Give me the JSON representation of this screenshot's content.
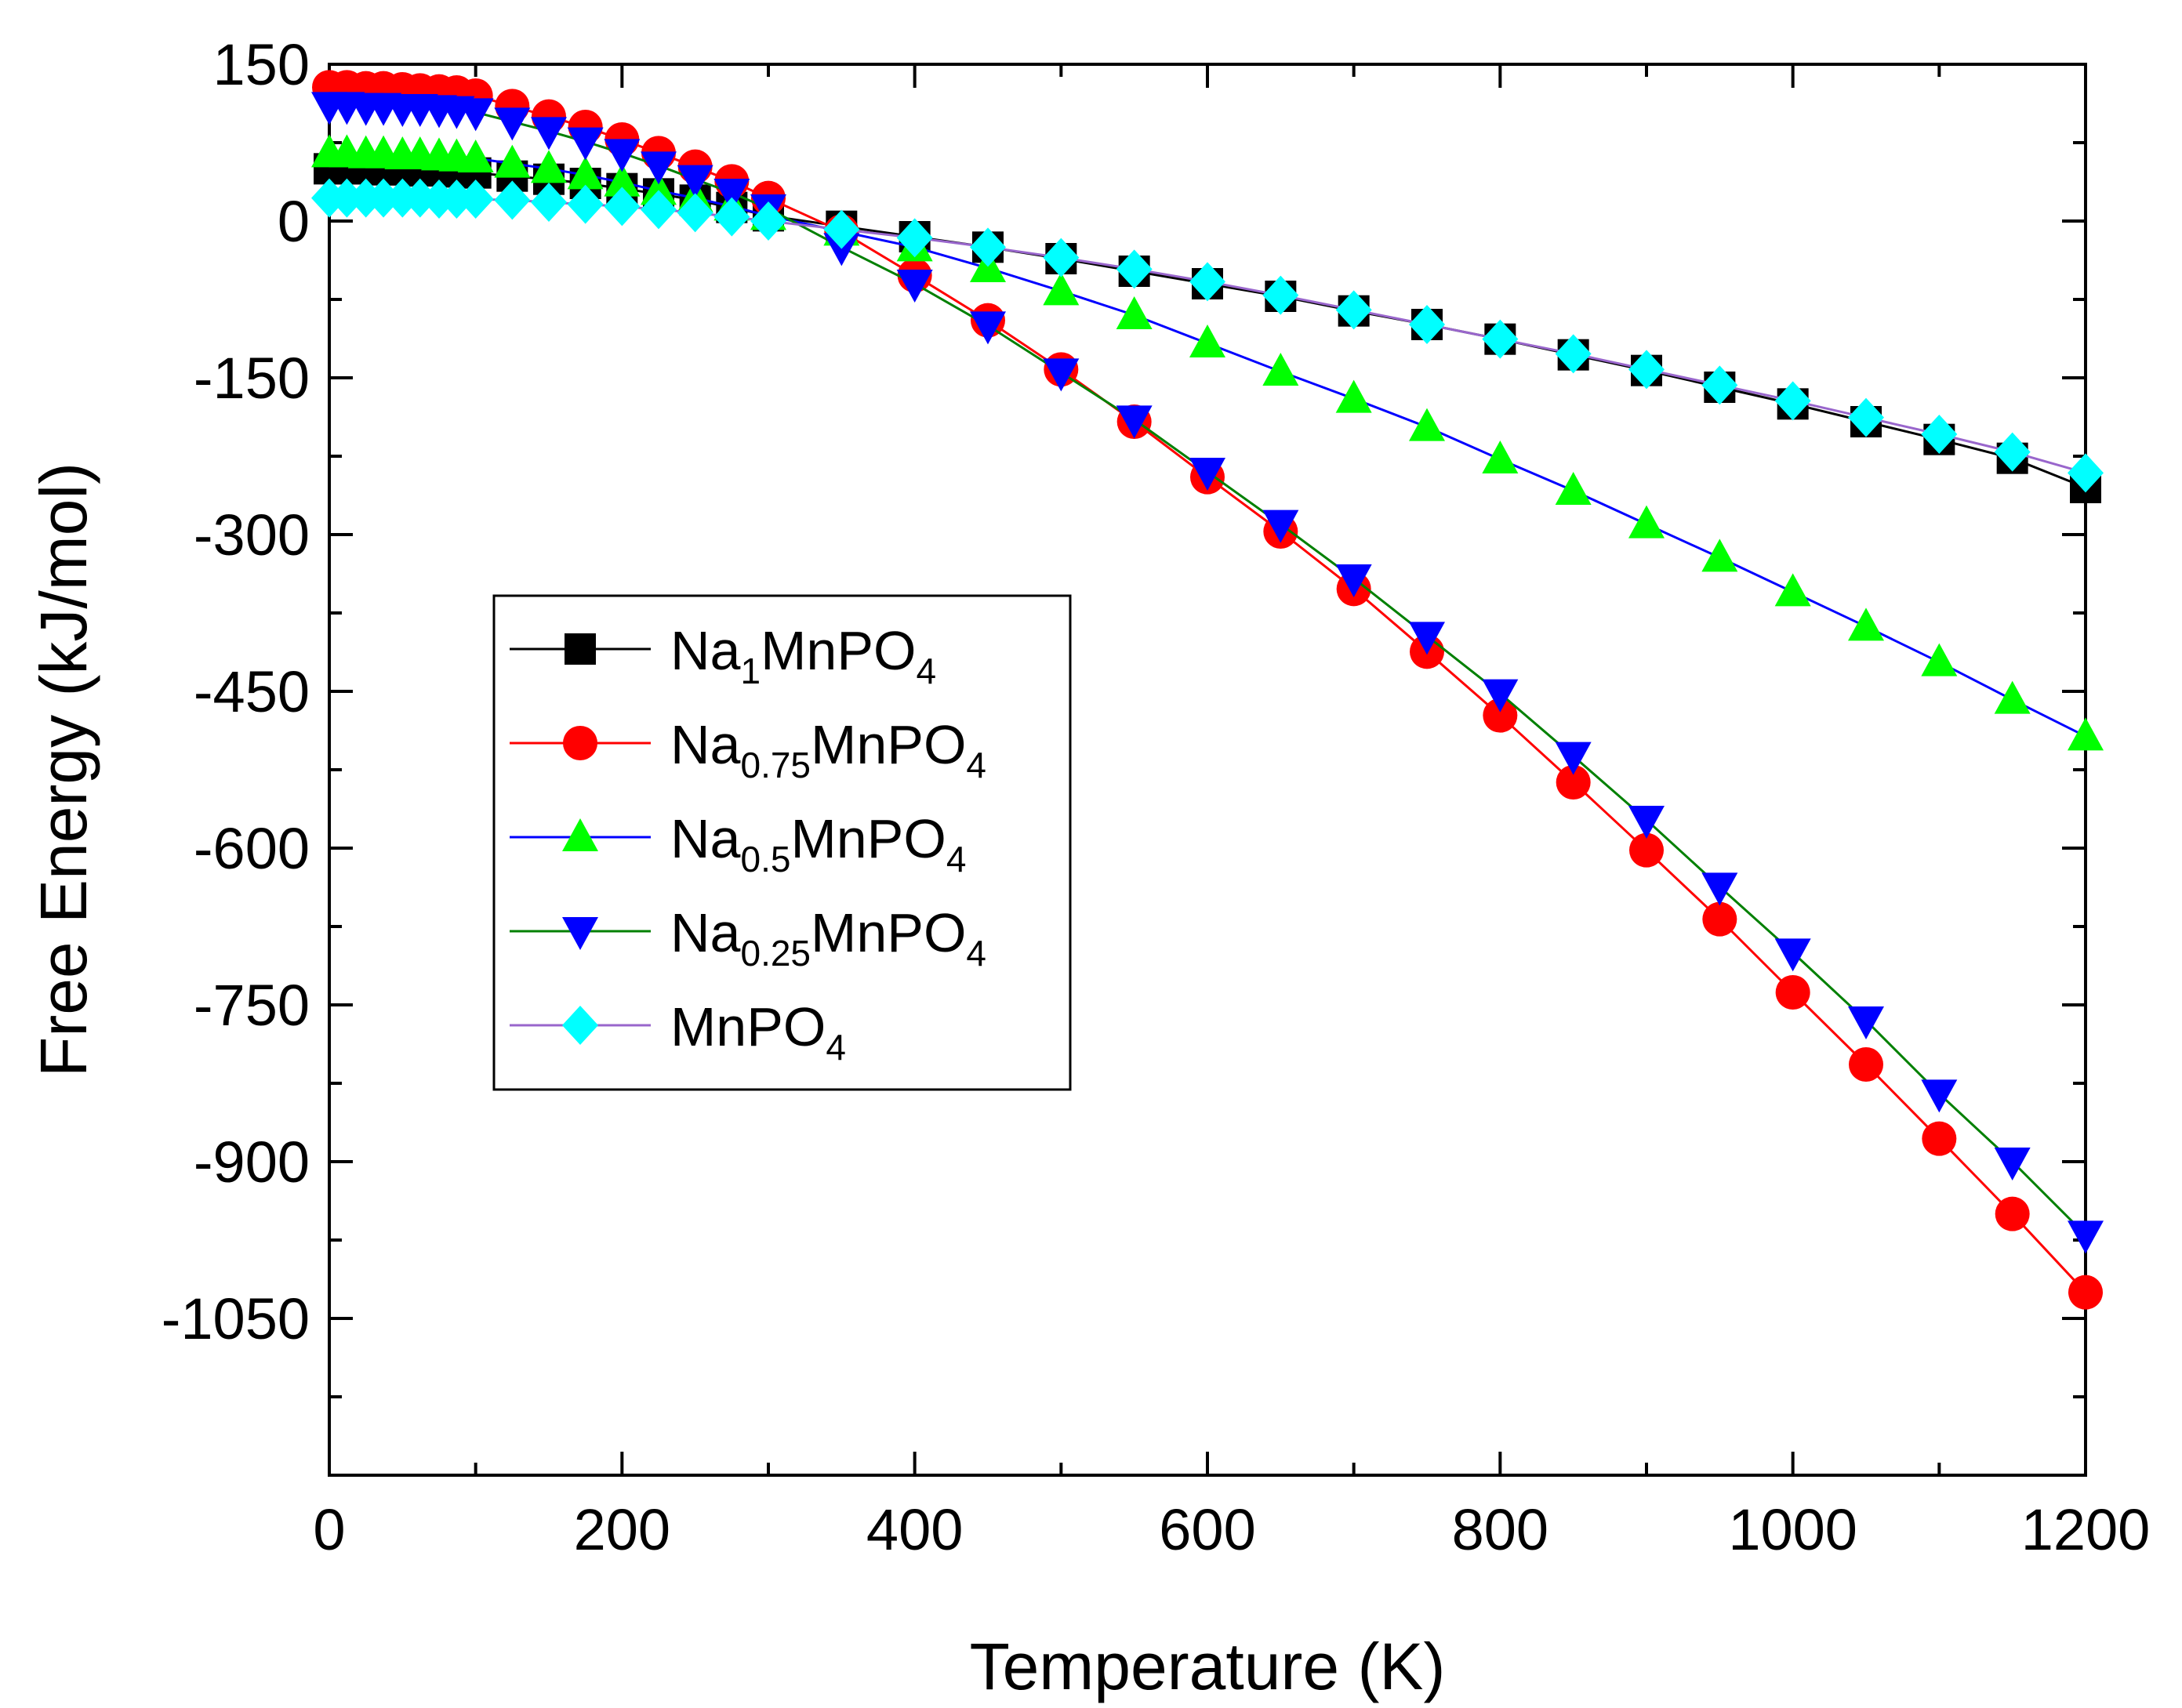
{
  "chart_data": {
    "type": "line",
    "xlabel": "Temperature (K)",
    "ylabel": "Free Energy (kJ/mol)",
    "xlim": [
      0,
      1200
    ],
    "ylim": [
      -1200,
      150
    ],
    "xticks": [
      0,
      200,
      400,
      600,
      800,
      1000,
      1200
    ],
    "yticks": [
      150,
      0,
      -150,
      -300,
      -450,
      -600,
      -750,
      -900,
      -1050
    ],
    "grid": false,
    "legend_position": "center-left",
    "series": [
      {
        "name": "Na1MnPO4",
        "label_main": "Na",
        "label_sub": "1",
        "label_tail": "MnPO",
        "label_sub2": "4",
        "color": "#000000",
        "marker": "square",
        "x": [
          0,
          12,
          25,
          37,
          50,
          62,
          75,
          87,
          100,
          125,
          150,
          175,
          200,
          225,
          250,
          275,
          300,
          350,
          400,
          450,
          500,
          550,
          600,
          650,
          700,
          750,
          800,
          850,
          900,
          950,
          1000,
          1050,
          1100,
          1150,
          1200
        ],
        "y": [
          50,
          50,
          50,
          49,
          49,
          48,
          48,
          47,
          46,
          43,
          40,
          36,
          31,
          26,
          20,
          13,
          5,
          -5,
          -15,
          -25,
          -36,
          -48,
          -60,
          -72,
          -86,
          -99,
          -113,
          -128,
          -143,
          -159,
          -175,
          -192,
          -209,
          -227,
          -255
        ]
      },
      {
        "name": "Na0.75MnPO4",
        "label_main": "Na",
        "label_sub": "0.75",
        "label_tail": "MnPO",
        "label_sub2": "4",
        "color": "#ff0000",
        "marker": "circle",
        "x": [
          0,
          12,
          25,
          37,
          50,
          62,
          75,
          87,
          100,
          125,
          150,
          175,
          200,
          225,
          250,
          275,
          300,
          350,
          400,
          450,
          500,
          550,
          600,
          650,
          700,
          750,
          800,
          850,
          900,
          950,
          1000,
          1050,
          1100,
          1150,
          1200
        ],
        "y": [
          128,
          128,
          127,
          127,
          126,
          125,
          124,
          123,
          120,
          110,
          100,
          90,
          78,
          65,
          52,
          38,
          22,
          -10,
          -52,
          -95,
          -142,
          -192,
          -245,
          -297,
          -352,
          -412,
          -473,
          -537,
          -602,
          -668,
          -738,
          -807,
          -878,
          -950,
          -1025
        ]
      },
      {
        "name": "Na0.5MnPO4",
        "label_main": "Na",
        "label_sub": "0.5",
        "label_tail": "MnPO",
        "label_sub2": "4",
        "color": "#0000ff",
        "marker": "triangle-up",
        "x": [
          0,
          12,
          25,
          37,
          50,
          62,
          75,
          87,
          100,
          125,
          150,
          175,
          200,
          225,
          250,
          275,
          300,
          350,
          400,
          450,
          500,
          550,
          600,
          650,
          700,
          750,
          800,
          850,
          900,
          950,
          1000,
          1050,
          1100,
          1150,
          1200
        ],
        "y": [
          65,
          65,
          64,
          64,
          63,
          63,
          62,
          61,
          60,
          55,
          50,
          44,
          37,
          29,
          22,
          14,
          5,
          -10,
          -25,
          -45,
          -67,
          -90,
          -117,
          -144,
          -170,
          -197,
          -228,
          -258,
          -290,
          -322,
          -355,
          -388,
          -422,
          -458,
          -493
        ]
      },
      {
        "name": "Na0.25MnPO4",
        "label_main": "Na",
        "label_sub": "0.25",
        "label_tail": "MnPO",
        "label_sub2": "4",
        "color": "#008000",
        "marker": "triangle-down",
        "x": [
          0,
          12,
          25,
          37,
          50,
          62,
          75,
          87,
          100,
          125,
          150,
          175,
          200,
          225,
          250,
          275,
          300,
          350,
          400,
          450,
          500,
          550,
          600,
          650,
          700,
          750,
          800,
          850,
          900,
          950,
          1000,
          1050,
          1100,
          1150,
          1200
        ],
        "y": [
          110,
          110,
          109,
          109,
          108,
          108,
          107,
          106,
          104,
          95,
          86,
          76,
          65,
          53,
          40,
          27,
          12,
          -25,
          -60,
          -100,
          -145,
          -190,
          -240,
          -290,
          -342,
          -397,
          -452,
          -512,
          -573,
          -637,
          -700,
          -765,
          -835,
          -900,
          -970
        ]
      },
      {
        "name": "MnPO4",
        "label_main": "MnPO",
        "label_sub": "4",
        "label_tail": "",
        "label_sub2": "",
        "color": "#9966cc",
        "marker": "diamond",
        "x": [
          0,
          12,
          25,
          37,
          50,
          62,
          75,
          87,
          100,
          125,
          150,
          175,
          200,
          225,
          250,
          275,
          300,
          350,
          400,
          450,
          500,
          550,
          600,
          650,
          700,
          750,
          800,
          850,
          900,
          950,
          1000,
          1050,
          1100,
          1150,
          1200
        ],
        "y": [
          22,
          22,
          22,
          22,
          22,
          22,
          21,
          21,
          21,
          20,
          18,
          16,
          14,
          11,
          8,
          4,
          0,
          -8,
          -16,
          -25,
          -35,
          -46,
          -58,
          -71,
          -85,
          -99,
          -113,
          -127,
          -142,
          -157,
          -172,
          -188,
          -204,
          -221,
          -241
        ]
      }
    ],
    "marker_fills": {
      "Na1MnPO4": "#000000",
      "Na0.75MnPO4": "#ff0000",
      "Na0.5MnPO4": "#00ff00",
      "Na0.25MnPO4": "#0000ff",
      "MnPO4": "#00ffff"
    }
  }
}
